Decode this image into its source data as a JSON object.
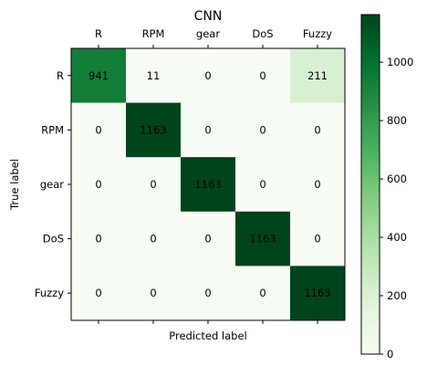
{
  "chart_data": {
    "type": "heatmap",
    "title": "CNN",
    "xlabel": "Predicted label",
    "ylabel": "True label",
    "x_categories": [
      "R",
      "RPM",
      "gear",
      "DoS",
      "Fuzzy"
    ],
    "y_categories": [
      "R",
      "RPM",
      "gear",
      "DoS",
      "Fuzzy"
    ],
    "values": [
      [
        941,
        11,
        0,
        0,
        211
      ],
      [
        0,
        1163,
        0,
        0,
        0
      ],
      [
        0,
        0,
        1163,
        0,
        0
      ],
      [
        0,
        0,
        0,
        1163,
        0
      ],
      [
        0,
        0,
        0,
        0,
        1163
      ]
    ],
    "colormap": "Greens",
    "color_range": [
      0,
      1163
    ],
    "colorbar_ticks": [
      0,
      200,
      400,
      600,
      800,
      1000
    ],
    "x_ticks_position": "top",
    "grid": false
  }
}
